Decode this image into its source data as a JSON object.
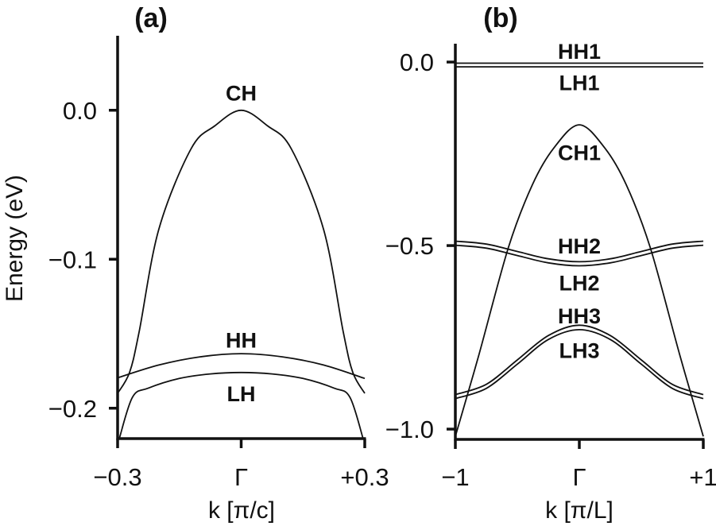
{
  "chart_data": [
    {
      "type": "line",
      "title": "(a)",
      "xlabel": "k [π/c]",
      "ylabel": "Energy (eV)",
      "xlim": [
        -0.3,
        0.3
      ],
      "ylim": [
        -0.2204,
        0.05
      ],
      "xticks": [
        {
          "value": -0.3,
          "label": "−0.3"
        },
        {
          "value": 0,
          "label": "Γ"
        },
        {
          "value": 0.3,
          "label": "+0.3"
        }
      ],
      "yticks": [
        {
          "value": 0,
          "label": "0.0"
        },
        {
          "value": -0.1,
          "label": "−0.1"
        },
        {
          "value": -0.2,
          "label": "−0.2"
        }
      ],
      "series": [
        {
          "name": "CH",
          "label_pos": [
            0,
            0.012
          ],
          "k": [
            -0.3,
            -0.271,
            -0.248,
            -0.2,
            -0.122,
            -0.064,
            0,
            0.064,
            0.122,
            0.2,
            0.248,
            0.271,
            0.3
          ],
          "E": [
            -0.19,
            -0.176,
            -0.149,
            -0.08,
            -0.026,
            -0.0105,
            0,
            -0.0105,
            -0.026,
            -0.08,
            -0.149,
            -0.176,
            -0.19
          ]
        },
        {
          "name": "HH",
          "label_pos": [
            0,
            -0.154
          ],
          "k": [
            -0.3,
            -0.2,
            -0.1,
            0,
            0.1,
            0.2,
            0.3
          ],
          "E": [
            -0.1796,
            -0.171,
            -0.1655,
            -0.1634,
            -0.1655,
            -0.171,
            -0.18
          ]
        },
        {
          "name": "LH",
          "label_pos": [
            0,
            -0.19
          ],
          "k": [
            -0.296,
            -0.264,
            -0.226,
            -0.15,
            -0.075,
            0,
            0.075,
            0.15,
            0.226,
            0.264,
            0.296
          ],
          "E": [
            -0.2204,
            -0.1926,
            -0.1866,
            -0.18,
            -0.177,
            -0.176,
            -0.177,
            -0.18,
            -0.1866,
            -0.1926,
            -0.2204
          ]
        }
      ]
    },
    {
      "type": "line",
      "title": "(b)",
      "xlabel": "k [π/L]",
      "ylabel": "",
      "xlim": [
        -1,
        1
      ],
      "ylim": [
        -1.028,
        0.05
      ],
      "xticks": [
        {
          "value": -1,
          "label": "−1"
        },
        {
          "value": 0,
          "label": "Γ"
        },
        {
          "value": 1,
          "label": "+1"
        }
      ],
      "yticks": [
        {
          "value": 0,
          "label": "0.0"
        },
        {
          "value": -0.5,
          "label": "−0.5"
        },
        {
          "value": -1,
          "label": "−1.0"
        }
      ],
      "series": [
        {
          "name": "HH1",
          "label_pos": [
            0,
            0.03
          ],
          "k": [
            -1,
            0,
            1
          ],
          "E": [
            -0.003,
            -0.003,
            -0.003
          ]
        },
        {
          "name": "LH1",
          "label_pos": [
            0,
            -0.055
          ],
          "k": [
            -1,
            0,
            1
          ],
          "E": [
            -0.013,
            -0.013,
            -0.013
          ]
        },
        {
          "name": "CH1",
          "label_pos": [
            0,
            -0.245
          ],
          "k": [
            -1,
            -0.81,
            -0.572,
            -0.378,
            -0.205,
            0,
            0.205,
            0.378,
            0.572,
            0.81,
            1
          ],
          "E": [
            -1.02,
            -0.798,
            -0.505,
            -0.334,
            -0.234,
            -0.171,
            -0.234,
            -0.334,
            -0.505,
            -0.798,
            -1.02
          ]
        },
        {
          "name": "HH2",
          "label_pos": [
            0,
            -0.5
          ],
          "k": [
            -1,
            -0.75,
            -0.5,
            -0.25,
            0,
            0.25,
            0.5,
            0.75,
            1
          ],
          "E": [
            -0.488,
            -0.496,
            -0.516,
            -0.536,
            -0.544,
            -0.536,
            -0.516,
            -0.496,
            -0.488
          ]
        },
        {
          "name": "LH2",
          "label_pos": [
            0,
            -0.6
          ],
          "k": [
            -1,
            -0.75,
            -0.5,
            -0.25,
            0,
            0.25,
            0.5,
            0.75,
            1
          ],
          "E": [
            -0.499,
            -0.507,
            -0.527,
            -0.547,
            -0.555,
            -0.547,
            -0.527,
            -0.507,
            -0.499
          ]
        },
        {
          "name": "HH3",
          "label_pos": [
            0,
            -0.69
          ],
          "k": [
            -1,
            -0.75,
            -0.5,
            -0.25,
            0,
            0.25,
            0.5,
            0.75,
            1
          ],
          "E": [
            -0.906,
            -0.878,
            -0.8115,
            -0.745,
            -0.717,
            -0.745,
            -0.8115,
            -0.878,
            -0.906
          ]
        },
        {
          "name": "LH3",
          "label_pos": [
            0,
            -0.785
          ],
          "k": [
            -1,
            -0.75,
            -0.5,
            -0.25,
            0,
            0.25,
            0.5,
            0.75,
            1
          ],
          "E": [
            -0.917,
            -0.889,
            -0.823,
            -0.756,
            -0.729,
            -0.756,
            -0.823,
            -0.889,
            -0.917
          ]
        }
      ]
    }
  ]
}
